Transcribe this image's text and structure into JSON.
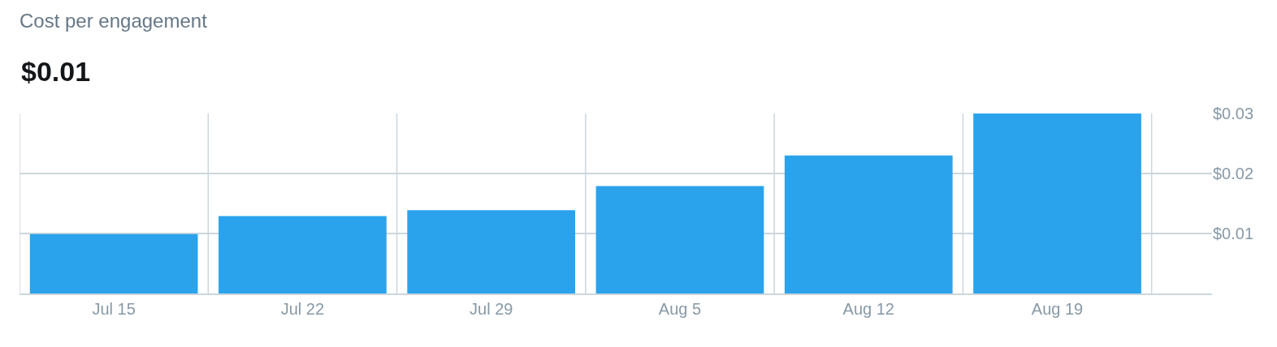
{
  "chart_data": {
    "type": "bar",
    "title": "Cost per engagement",
    "subtitle": "$0.01",
    "categories": [
      "Jul 15",
      "Jul 22",
      "Jul 29",
      "Aug 5",
      "Aug 12",
      "Aug 19"
    ],
    "values": [
      0.0099,
      0.0129,
      0.0139,
      0.0179,
      0.023,
      0.03
    ],
    "color": "#2aa3ec",
    "ylim": [
      0,
      0.03
    ],
    "yticks": [
      {
        "value": 0.01,
        "label": "$0.01"
      },
      {
        "value": 0.02,
        "label": "$0.02"
      },
      {
        "value": 0.03,
        "label": "$0.03"
      }
    ],
    "grid": true
  }
}
